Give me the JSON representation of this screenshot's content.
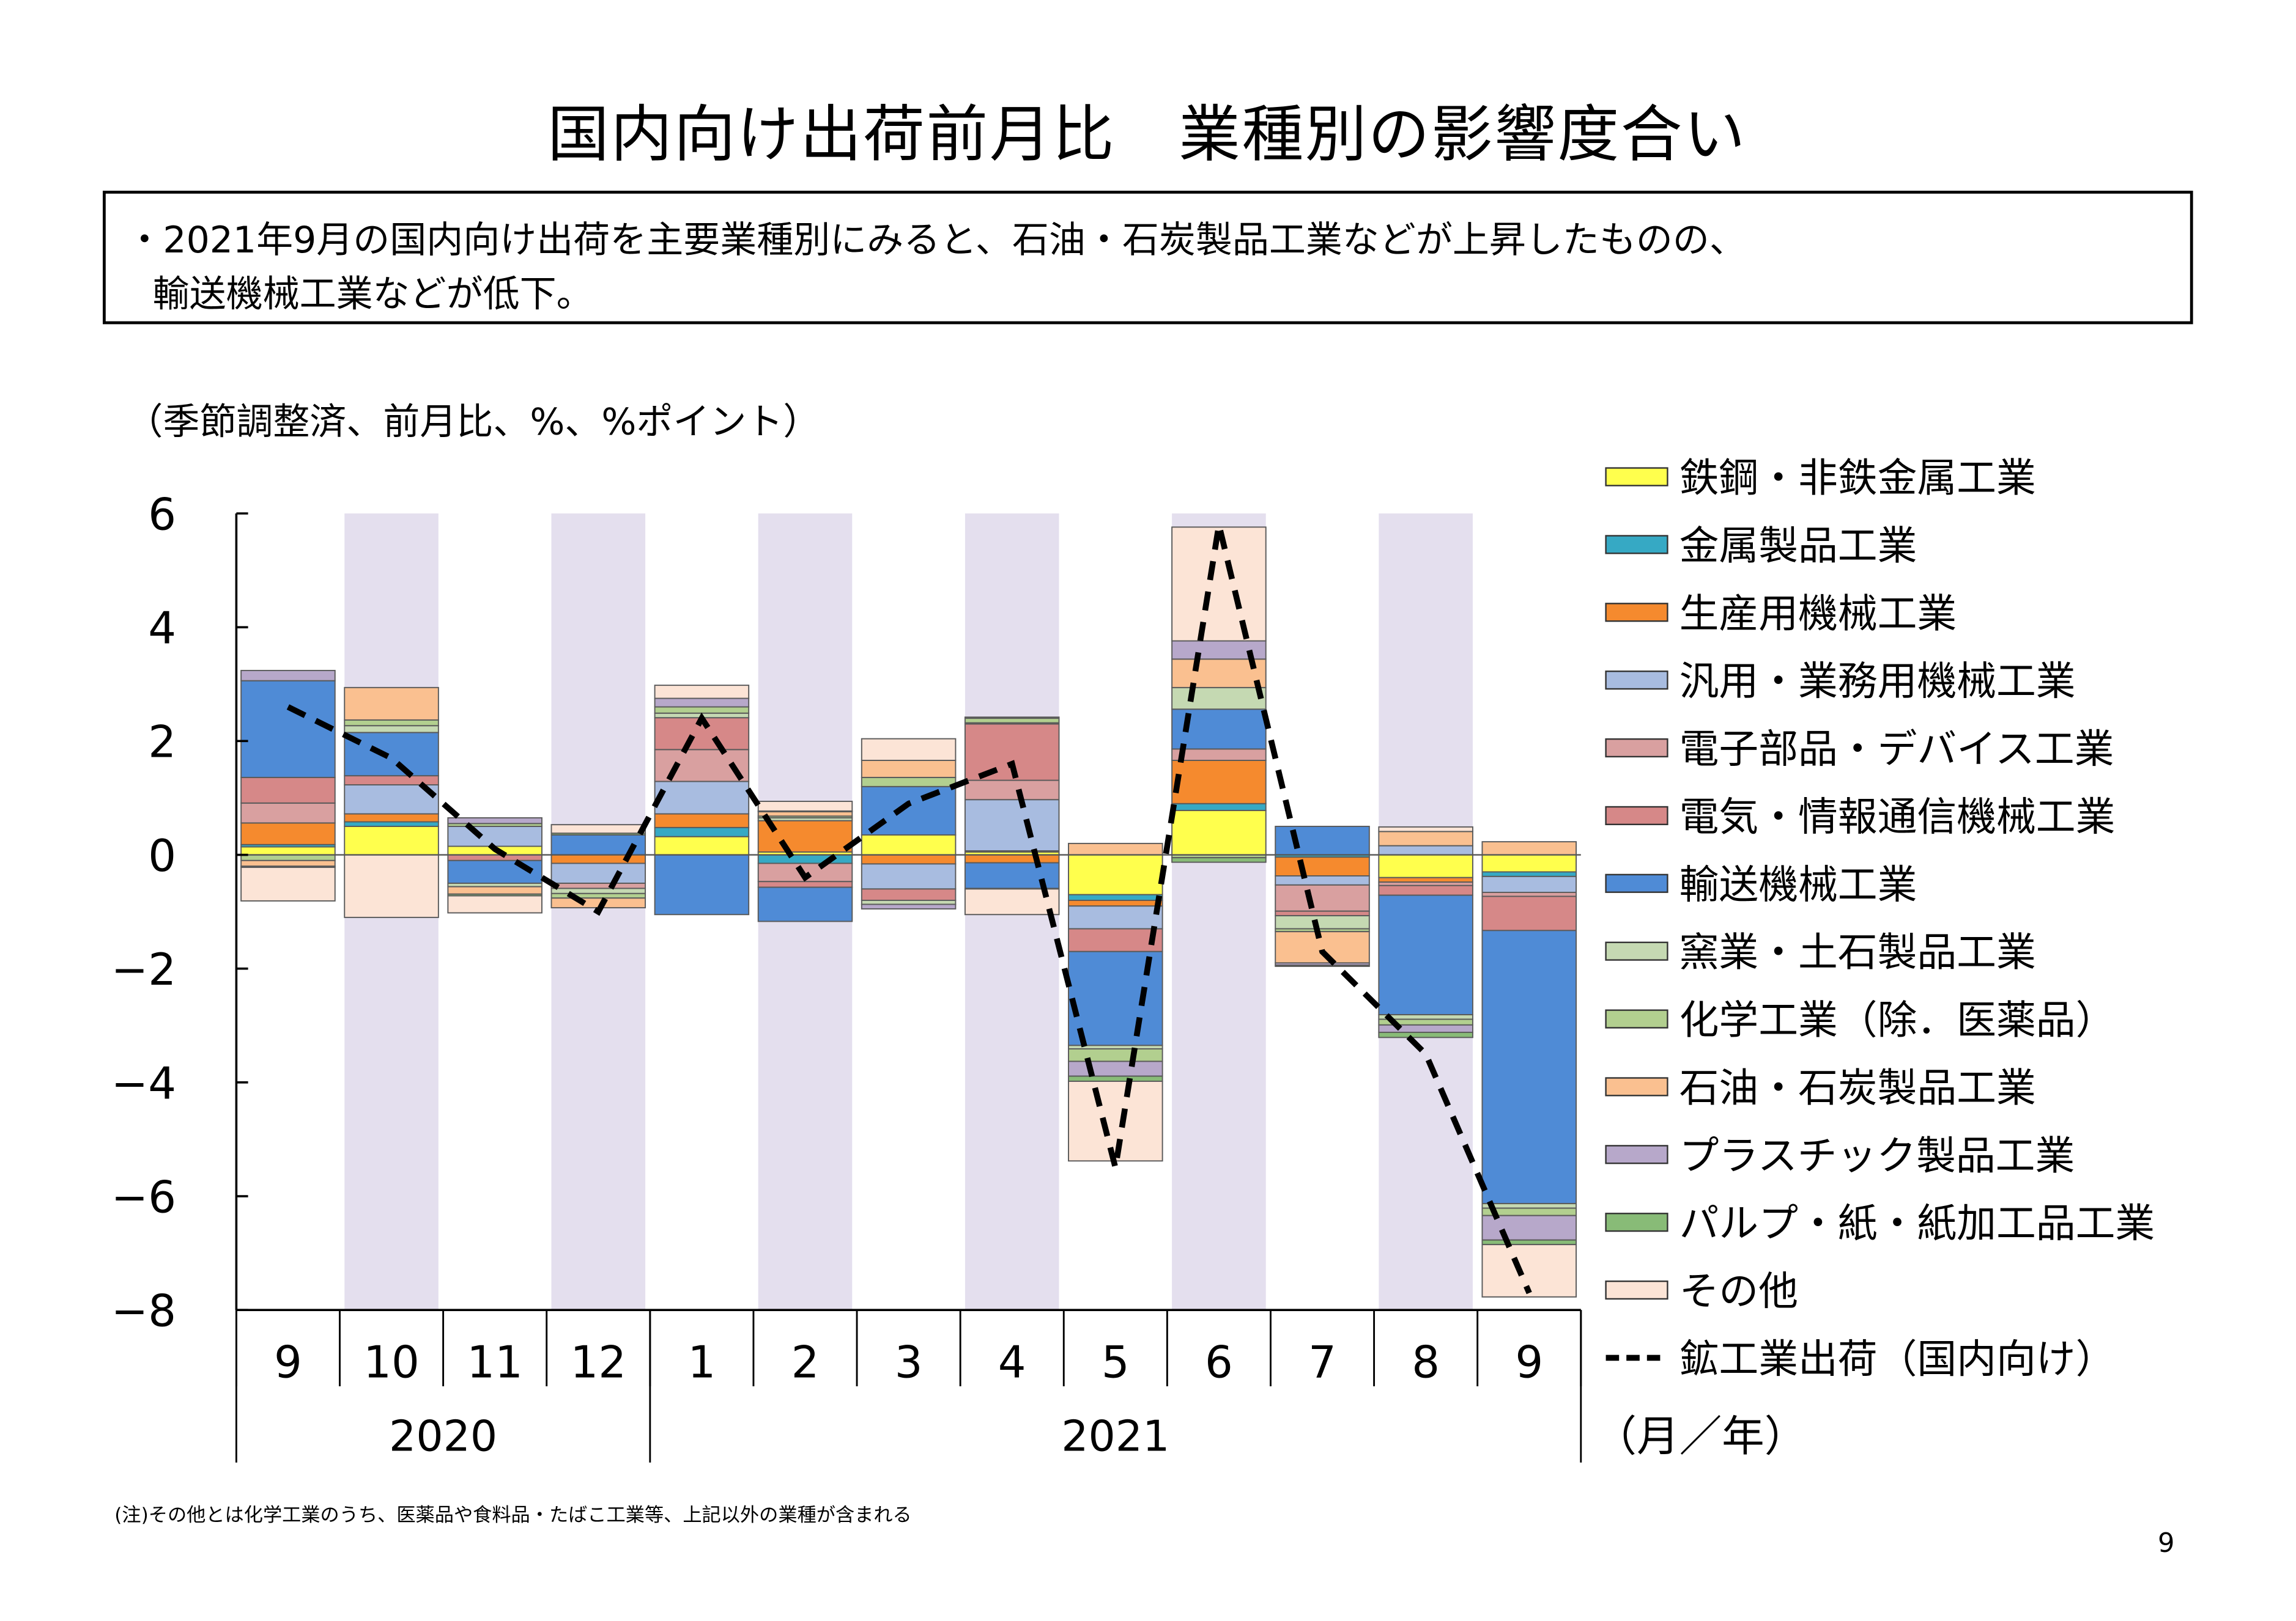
{
  "title": "国内向け出荷前月比　業種別の影響度合い",
  "summary": {
    "line1": "・2021年9月の国内向け出荷を主要業種別にみると、石油・石炭製品工業などが上昇したものの、",
    "line2": "輸送機械工業などが低下。"
  },
  "footnote": "(注)その他とは化学工業のうち、医薬品や食料品・たばこ工業等、上記以外の業種が含まれる",
  "page_number": "9",
  "chart_data": {
    "type": "bar",
    "stacked": true,
    "units_label": "（季節調整済、前月比、%、%ポイント）",
    "axis_unit": "（月／年）",
    "ylim": [
      -8,
      6
    ],
    "yticks": [
      6,
      4,
      2,
      0,
      -2,
      -4,
      -6,
      -8
    ],
    "ytick_labels": [
      "6",
      "4",
      "2",
      "0",
      "−2",
      "−4",
      "−6",
      "−8"
    ],
    "categories": [
      "9",
      "10",
      "11",
      "12",
      "1",
      "2",
      "3",
      "4",
      "5",
      "6",
      "7",
      "8",
      "9"
    ],
    "year_groups": [
      {
        "label": "2020",
        "start": 0,
        "end": 3
      },
      {
        "label": "2021",
        "start": 4,
        "end": 12
      }
    ],
    "shaded_categories": [
      1,
      3,
      5,
      7,
      9,
      11
    ],
    "colors": {
      "band": "#e4dfee",
      "line": "#000000"
    },
    "series": [
      {
        "name": "鉄鋼・非鉄金属工業",
        "color": "#ffff4d",
        "values": [
          0.14,
          0.5,
          0.15,
          0.0,
          0.32,
          0.05,
          0.35,
          0.05,
          -0.7,
          0.78,
          0.0,
          -0.4,
          -0.3
        ]
      },
      {
        "name": "金属製品工業",
        "color": "#36a9c4",
        "values": [
          0.04,
          0.08,
          0.0,
          0.0,
          0.16,
          -0.15,
          0.0,
          0.02,
          -0.1,
          0.12,
          -0.04,
          0.0,
          -0.08
        ]
      },
      {
        "name": "生産用機械工業",
        "color": "#f58a2e",
        "values": [
          0.38,
          0.14,
          0.0,
          -0.15,
          0.24,
          0.55,
          -0.16,
          -0.14,
          -0.1,
          0.76,
          -0.33,
          -0.08,
          0.0
        ]
      },
      {
        "name": "汎用・業務用機械工業",
        "color": "#a8bce0",
        "values": [
          0.0,
          0.51,
          0.35,
          -0.35,
          0.57,
          0.0,
          -0.44,
          0.9,
          -0.4,
          0.0,
          -0.16,
          0.16,
          -0.28
        ]
      },
      {
        "name": "電子部品・デバイス工業",
        "color": "#d9a0a0",
        "values": [
          0.35,
          0.0,
          0.0,
          -0.09,
          0.56,
          -0.32,
          0.0,
          0.34,
          0.0,
          0.2,
          -0.46,
          -0.06,
          -0.07
        ]
      },
      {
        "name": "電気・情報通信機械工業",
        "color": "#d68888",
        "values": [
          0.45,
          0.16,
          -0.1,
          0.0,
          0.56,
          -0.1,
          -0.2,
          0.99,
          -0.4,
          0.0,
          -0.08,
          -0.17,
          -0.6
        ]
      },
      {
        "name": "輸送機械工業",
        "color": "#4f8bd6",
        "values": [
          1.7,
          0.76,
          -0.4,
          0.35,
          -1.05,
          -0.6,
          0.85,
          -0.45,
          -1.65,
          0.7,
          0.5,
          -2.1,
          -4.8
        ]
      },
      {
        "name": "窯業・土石製品工業",
        "color": "#c5d9b2",
        "values": [
          0.0,
          0.12,
          -0.06,
          -0.09,
          0.08,
          0.05,
          -0.07,
          0.02,
          -0.06,
          0.38,
          -0.23,
          -0.08,
          -0.08
        ]
      },
      {
        "name": "化学工業（除．医薬品）",
        "color": "#b2cf8f",
        "values": [
          -0.1,
          0.1,
          0.05,
          -0.08,
          0.11,
          0.03,
          0.16,
          0.08,
          -0.22,
          -0.05,
          -0.05,
          -0.1,
          -0.13
        ]
      },
      {
        "name": "石油・石炭製品工業",
        "color": "#fac090",
        "values": [
          -0.1,
          0.57,
          -0.13,
          -0.17,
          0.0,
          0.08,
          0.3,
          0.0,
          0.2,
          0.5,
          -0.55,
          0.25,
          0.23
        ]
      },
      {
        "name": "プラスチック製品工業",
        "color": "#b7a8ca",
        "values": [
          0.18,
          0.0,
          0.1,
          0.0,
          0.15,
          0.0,
          -0.08,
          0.02,
          -0.26,
          0.32,
          -0.04,
          -0.13,
          -0.43
        ]
      },
      {
        "name": "パルプ・紙・紙加工品工業",
        "color": "#88bb77",
        "values": [
          -0.02,
          0.0,
          -0.03,
          0.03,
          0.0,
          0.01,
          0.0,
          -0.01,
          -0.09,
          -0.08,
          0.0,
          -0.09,
          -0.08
        ]
      },
      {
        "name": "その他",
        "color": "#fce4d6",
        "values": [
          -0.59,
          -1.1,
          -0.3,
          0.15,
          0.23,
          0.17,
          0.38,
          -0.45,
          -1.4,
          2.0,
          -0.02,
          0.08,
          -0.92
        ]
      }
    ],
    "line": {
      "name": "鉱工業出荷（国内向け）",
      "style": "dashed",
      "values": [
        2.6,
        1.7,
        0.1,
        -1.0,
        2.4,
        -0.4,
        0.9,
        1.6,
        -5.5,
        5.8,
        -1.7,
        -3.5,
        -7.7
      ]
    }
  }
}
